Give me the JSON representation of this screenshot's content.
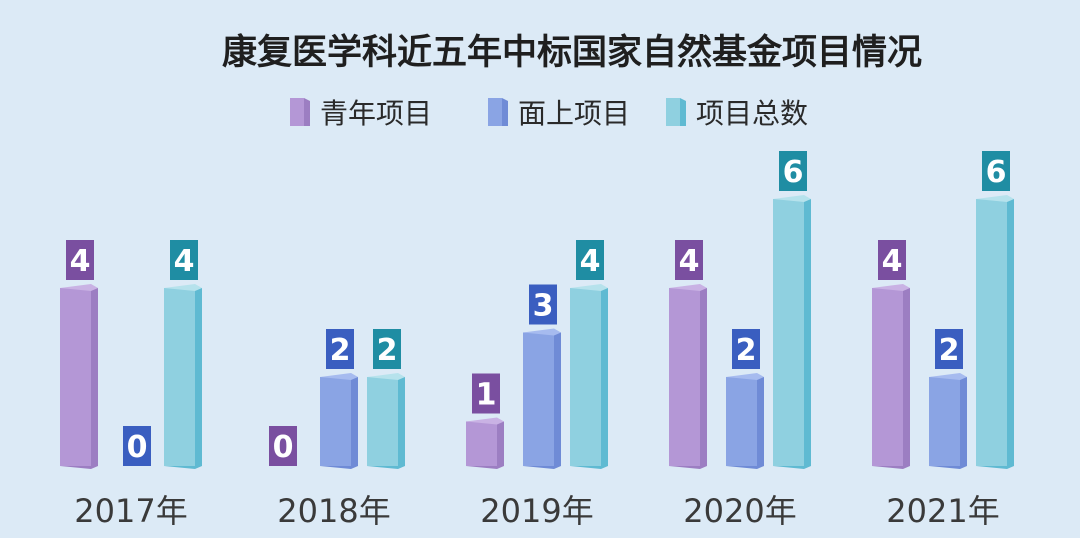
{
  "chart_data": {
    "type": "bar",
    "title": "康复医学科近五年中标国家自然基金项目情况",
    "categories": [
      "2017年",
      "2018年",
      "2019年",
      "2020年",
      "2021年"
    ],
    "series": [
      {
        "name": "青年项目",
        "values": [
          4,
          0,
          1,
          4,
          4
        ]
      },
      {
        "name": "面上项目",
        "values": [
          0,
          2,
          3,
          2,
          2
        ]
      },
      {
        "name": "项目总数",
        "values": [
          4,
          2,
          4,
          6,
          6
        ]
      }
    ],
    "ylim": [
      0,
      6
    ],
    "legend": "top-center",
    "grid": false,
    "colors": {
      "series": [
        {
          "front": "#b497d6",
          "side": "#9c7ec2",
          "top": "#c9b2e4",
          "label": "#7a4fa0"
        },
        {
          "front": "#8aa4e4",
          "side": "#6f8bd6",
          "top": "#a6bbef",
          "label": "#3a5ec0"
        },
        {
          "front": "#8fd0e0",
          "side": "#5fbad2",
          "top": "#b6e2ec",
          "label": "#1f8da3"
        }
      ]
    }
  }
}
